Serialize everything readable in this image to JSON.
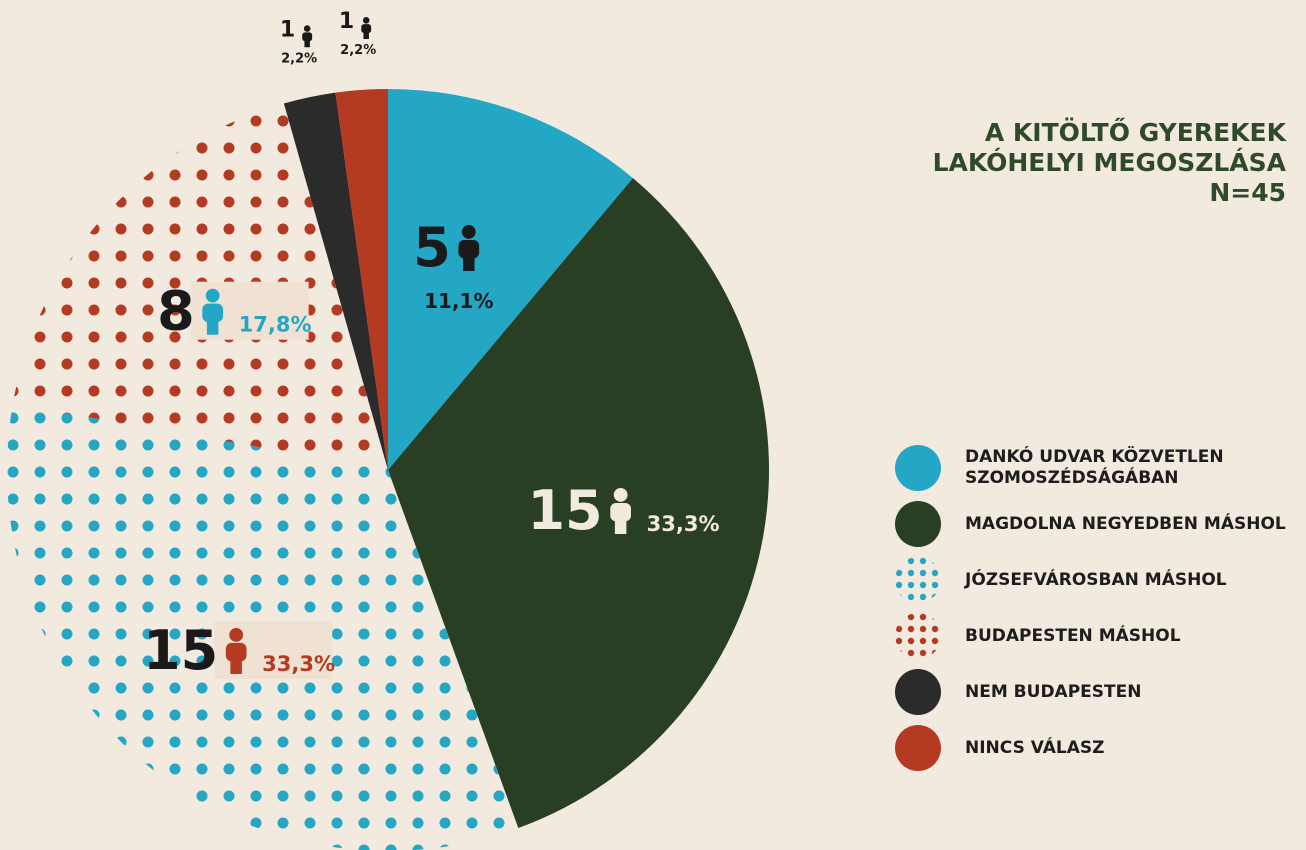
{
  "chart_data": {
    "type": "pie",
    "title": "A KITÖLTŐ GYEREKEK LAKÓHELYI MEGOSZLÁSA",
    "subtitle": "N=45",
    "categories": [
      "DANKÓ UDVAR KÖZVETLEN SZOMOSZÉDSÁGÁBAN",
      "MAGDOLNA NEGYEDBEN MÁSHOL",
      "JÓZSEFVÁROSBAN MÁSHOL",
      "BUDAPESTEN MÁSHOL",
      "NEM BUDAPESTEN",
      "NINCS VÁLASZ"
    ],
    "values": [
      11.1,
      33.3,
      33.3,
      17.8,
      2.2,
      2.2
    ],
    "value_labels": [
      "11,1%",
      "33,3%",
      "33,3%",
      "17,8%",
      "2,2%",
      "2,2%"
    ],
    "counts": [
      5,
      15,
      15,
      8,
      1,
      1
    ],
    "colors": [
      "#23a7c5",
      "#283f24",
      "#23a7c5",
      "#b43a22",
      "#2b2b2b",
      "#b43a22"
    ],
    "fills": [
      "solid",
      "solid",
      "dotted",
      "dotted",
      "solid",
      "solid"
    ]
  }
}
